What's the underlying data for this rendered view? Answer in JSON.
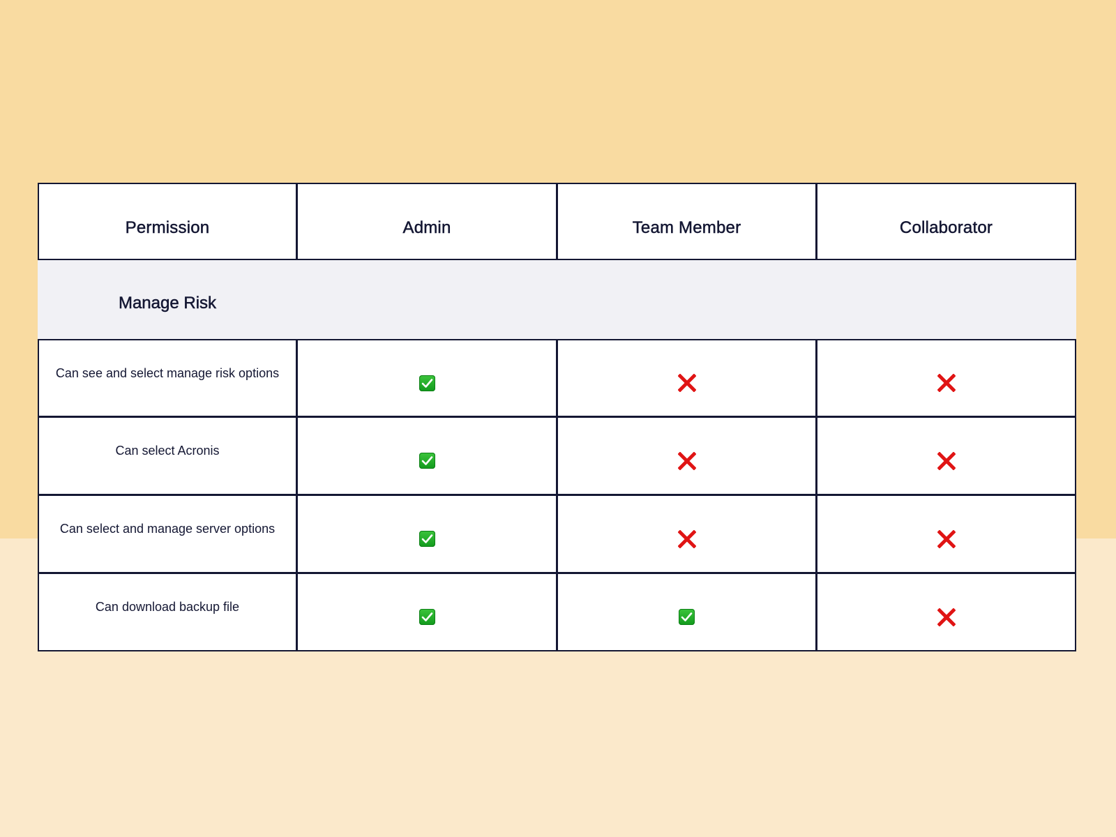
{
  "table": {
    "headers": [
      "Permission",
      "Admin",
      "Team Member",
      "Collaborator"
    ],
    "section_title": "Manage Risk",
    "rows": [
      {
        "permission": "Can see and select manage risk options",
        "admin": "yes",
        "team_member": "no",
        "collaborator": "no"
      },
      {
        "permission": "Can select Acronis",
        "admin": "yes",
        "team_member": "no",
        "collaborator": "no"
      },
      {
        "permission": "Can select and manage server options",
        "admin": "yes",
        "team_member": "no",
        "collaborator": "no"
      },
      {
        "permission": "Can download backup file",
        "admin": "yes",
        "team_member": "yes",
        "collaborator": "no"
      }
    ]
  },
  "icons": {
    "yes": "check-mark-button-icon",
    "no": "cross-mark-icon"
  },
  "colors": {
    "background_top": "#f9dba1",
    "background_bottom": "#fbe9cb",
    "border": "#141733",
    "text": "#141733",
    "section_bg": "#f1f1f5",
    "check": "#17a51f",
    "cross": "#e01414"
  }
}
